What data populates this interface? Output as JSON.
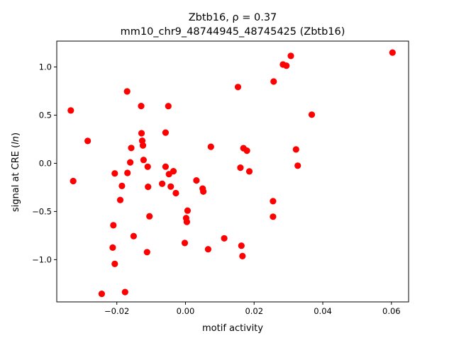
{
  "chart_data": {
    "type": "scatter",
    "title_line1": "Zbtb16, ρ = 0.37",
    "title_line2": "mm10_chr9_48744945_48745425 (Zbtb16)",
    "xlabel": "motif activity",
    "ylabel_prefix": "signal at CRE (",
    "ylabel_italic": "ln",
    "ylabel_suffix": ")",
    "xlim": [
      -0.0375,
      0.065
    ],
    "ylim": [
      -1.4385,
      1.2685
    ],
    "xticks": [
      {
        "value": -0.02,
        "label": "−0.02"
      },
      {
        "value": 0.0,
        "label": "0.00"
      },
      {
        "value": 0.02,
        "label": "0.02"
      },
      {
        "value": 0.04,
        "label": "0.04"
      },
      {
        "value": 0.06,
        "label": "0.06"
      }
    ],
    "yticks": [
      {
        "value": -1.0,
        "label": "−1.0"
      },
      {
        "value": -0.5,
        "label": "−0.5"
      },
      {
        "value": 0.0,
        "label": "0.0"
      },
      {
        "value": 0.5,
        "label": "0.5"
      },
      {
        "value": 1.0,
        "label": "1.0"
      }
    ],
    "marker_color": "#ff0000",
    "grid": false,
    "points": [
      {
        "x": -0.0334,
        "y": 0.548
      },
      {
        "x": -0.0327,
        "y": -0.184
      },
      {
        "x": -0.0285,
        "y": 0.232
      },
      {
        "x": -0.0244,
        "y": -1.355
      },
      {
        "x": -0.021,
        "y": -0.643
      },
      {
        "x": -0.0212,
        "y": -0.875
      },
      {
        "x": -0.0206,
        "y": -1.044
      },
      {
        "x": -0.0206,
        "y": -0.105
      },
      {
        "x": -0.019,
        "y": -0.381
      },
      {
        "x": -0.0185,
        "y": -0.235
      },
      {
        "x": -0.0176,
        "y": -1.336
      },
      {
        "x": -0.017,
        "y": 0.746
      },
      {
        "x": -0.0169,
        "y": -0.1
      },
      {
        "x": -0.0161,
        "y": 0.01
      },
      {
        "x": -0.0158,
        "y": 0.159
      },
      {
        "x": -0.0151,
        "y": -0.756
      },
      {
        "x": -0.0129,
        "y": 0.595
      },
      {
        "x": -0.0128,
        "y": 0.312
      },
      {
        "x": -0.0126,
        "y": 0.234
      },
      {
        "x": -0.0124,
        "y": 0.185
      },
      {
        "x": -0.0122,
        "y": 0.035
      },
      {
        "x": -0.0112,
        "y": -0.922
      },
      {
        "x": -0.011,
        "y": -0.036
      },
      {
        "x": -0.0109,
        "y": -0.244
      },
      {
        "x": -0.0105,
        "y": -0.55
      },
      {
        "x": -0.0068,
        "y": -0.212
      },
      {
        "x": -0.0058,
        "y": 0.319
      },
      {
        "x": -0.0058,
        "y": -0.035
      },
      {
        "x": -0.005,
        "y": 0.594
      },
      {
        "x": -0.0048,
        "y": -0.112
      },
      {
        "x": -0.0043,
        "y": -0.242
      },
      {
        "x": -0.0035,
        "y": -0.082
      },
      {
        "x": -0.0028,
        "y": -0.309
      },
      {
        "x": -0.0002,
        "y": -0.827
      },
      {
        "x": 0.0002,
        "y": -0.568
      },
      {
        "x": 0.0004,
        "y": -0.608
      },
      {
        "x": 0.0006,
        "y": -0.491
      },
      {
        "x": 0.0032,
        "y": -0.178
      },
      {
        "x": 0.005,
        "y": -0.262
      },
      {
        "x": 0.0052,
        "y": -0.293
      },
      {
        "x": 0.0066,
        "y": -0.892
      },
      {
        "x": 0.0074,
        "y": 0.172
      },
      {
        "x": 0.0113,
        "y": -0.779
      },
      {
        "x": 0.0153,
        "y": 0.792
      },
      {
        "x": 0.016,
        "y": -0.045
      },
      {
        "x": 0.0163,
        "y": -0.855
      },
      {
        "x": 0.0166,
        "y": -0.963
      },
      {
        "x": 0.0169,
        "y": 0.157
      },
      {
        "x": 0.0179,
        "y": 0.131
      },
      {
        "x": 0.0186,
        "y": -0.084
      },
      {
        "x": 0.0255,
        "y": -0.393
      },
      {
        "x": 0.0255,
        "y": -0.554
      },
      {
        "x": 0.0257,
        "y": 0.849
      },
      {
        "x": 0.0284,
        "y": 1.026
      },
      {
        "x": 0.0294,
        "y": 1.013
      },
      {
        "x": 0.0307,
        "y": 1.115
      },
      {
        "x": 0.0322,
        "y": 0.144
      },
      {
        "x": 0.0327,
        "y": -0.025
      },
      {
        "x": 0.0368,
        "y": 0.505
      },
      {
        "x": 0.0603,
        "y": 1.149
      }
    ]
  }
}
